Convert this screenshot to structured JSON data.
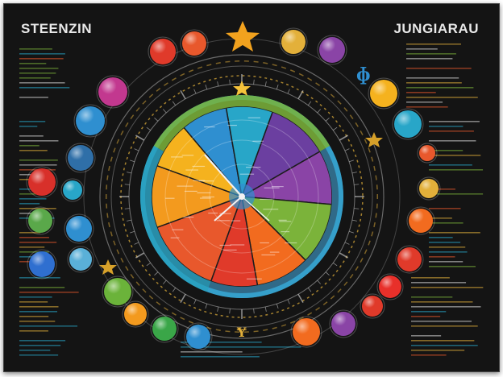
{
  "header": {
    "title_left": "STEENZIN",
    "title_right": "JUNGIARAU"
  },
  "colors": {
    "board": "#141414",
    "wheel": [
      "#e8582c",
      "#f39a1e",
      "#f5b21e",
      "#2f8fd0",
      "#28a6c8",
      "#6b3fa0",
      "#8a44a6",
      "#7bb33a",
      "#e03a2a",
      "#f26b1f"
    ],
    "accent_gold": "#e3b03a",
    "chalk": "#d8d8d8"
  },
  "icons": {
    "top_star": "star-icon",
    "mid_star": "star-icon",
    "clock_hands": "clock-hands-icon"
  }
}
